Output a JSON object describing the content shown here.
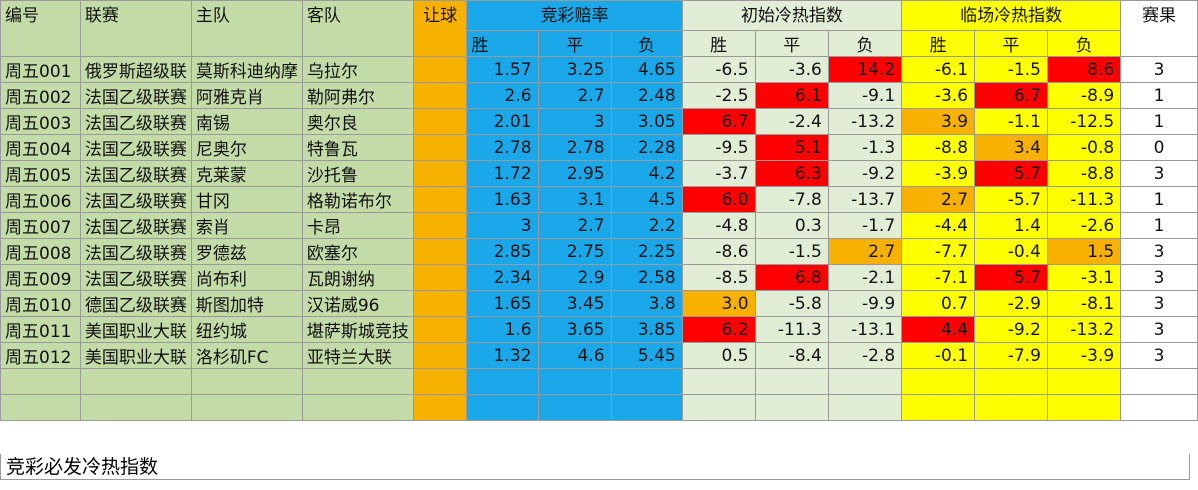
{
  "headers": {
    "id": "编号",
    "league": "联赛",
    "home": "主队",
    "away": "客队",
    "handicap": "让球",
    "odds_group": "竞彩赔率",
    "initial_group": "初始冷热指数",
    "live_group": "临场冷热指数",
    "result": "赛果",
    "win": "胜",
    "draw": "平",
    "lose": "负"
  },
  "rows": [
    {
      "id": "周五001",
      "league": "俄罗斯超级联",
      "home": "莫斯科迪纳摩",
      "away": "乌拉尔",
      "ow": "1.57",
      "od": "3.25",
      "ol": "4.65",
      "iw": "-6.5",
      "id2": "-3.6",
      "il": "14.2",
      "lw": "-6.1",
      "ld": "-1.5",
      "ll": "8.6",
      "res": "3"
    },
    {
      "id": "周五002",
      "league": "法国乙级联赛",
      "home": "阿雅克肖",
      "away": "勒阿弗尔",
      "ow": "2.6",
      "od": "2.7",
      "ol": "2.48",
      "iw": "-2.5",
      "id2": "6.1",
      "il": "-9.1",
      "lw": "-3.6",
      "ld": "6.7",
      "ll": "-8.9",
      "res": "1"
    },
    {
      "id": "周五003",
      "league": "法国乙级联赛",
      "home": "南锡",
      "away": "奥尔良",
      "ow": "2.01",
      "od": "3",
      "ol": "3.05",
      "iw": "6.7",
      "id2": "-2.4",
      "il": "-13.2",
      "lw": "3.9",
      "ld": "-1.1",
      "ll": "-12.5",
      "res": "1"
    },
    {
      "id": "周五004",
      "league": "法国乙级联赛",
      "home": "尼奥尔",
      "away": "特鲁瓦",
      "ow": "2.78",
      "od": "2.78",
      "ol": "2.28",
      "iw": "-9.5",
      "id2": "5.1",
      "il": "-1.3",
      "lw": "-8.8",
      "ld": "3.4",
      "ll": "-0.8",
      "res": "0"
    },
    {
      "id": "周五005",
      "league": "法国乙级联赛",
      "home": "克莱蒙",
      "away": "沙托鲁",
      "ow": "1.72",
      "od": "2.95",
      "ol": "4.2",
      "iw": "-3.7",
      "id2": "6.3",
      "il": "-9.2",
      "lw": "-3.9",
      "ld": "5.7",
      "ll": "-8.8",
      "res": "3"
    },
    {
      "id": "周五006",
      "league": "法国乙级联赛",
      "home": "甘冈",
      "away": "格勒诺布尔",
      "ow": "1.63",
      "od": "3.1",
      "ol": "4.5",
      "iw": "6.0",
      "id2": "-7.8",
      "il": "-13.7",
      "lw": "2.7",
      "ld": "-5.7",
      "ll": "-11.3",
      "res": "1"
    },
    {
      "id": "周五007",
      "league": "法国乙级联赛",
      "home": "索肖",
      "away": "卡昂",
      "ow": "3",
      "od": "2.7",
      "ol": "2.2",
      "iw": "-4.8",
      "id2": "0.3",
      "il": "-1.7",
      "lw": "-4.4",
      "ld": "1.4",
      "ll": "-2.6",
      "res": "1"
    },
    {
      "id": "周五008",
      "league": "法国乙级联赛",
      "home": "罗德兹",
      "away": "欧塞尔",
      "ow": "2.85",
      "od": "2.75",
      "ol": "2.25",
      "iw": "-8.6",
      "id2": "-1.5",
      "il": "2.7",
      "lw": "-7.7",
      "ld": "-0.4",
      "ll": "1.5",
      "res": "3"
    },
    {
      "id": "周五009",
      "league": "法国乙级联赛",
      "home": "尚布利",
      "away": "瓦朗谢纳",
      "ow": "2.34",
      "od": "2.9",
      "ol": "2.58",
      "iw": "-8.5",
      "id2": "6.8",
      "il": "-2.1",
      "lw": "-7.1",
      "ld": "5.7",
      "ll": "-3.1",
      "res": "3"
    },
    {
      "id": "周五010",
      "league": "德国乙级联赛",
      "home": "斯图加特",
      "away": "汉诺威96",
      "ow": "1.65",
      "od": "3.45",
      "ol": "3.8",
      "iw": "3.0",
      "id2": "-5.8",
      "il": "-9.9",
      "lw": "0.7",
      "ld": "-2.9",
      "ll": "-8.1",
      "res": "3"
    },
    {
      "id": "周五011",
      "league": "美国职业大联",
      "home": "纽约城",
      "away": "堪萨斯城竞技",
      "ow": "1.6",
      "od": "3.65",
      "ol": "3.85",
      "iw": "6.2",
      "id2": "-11.3",
      "il": "-13.1",
      "lw": "4.4",
      "ld": "-9.2",
      "ll": "-13.2",
      "res": "3"
    },
    {
      "id": "周五012",
      "league": "美国职业大联",
      "home": "洛杉矶FC",
      "away": "亚特兰大联",
      "ow": "1.32",
      "od": "4.6",
      "ol": "5.45",
      "iw": "0.5",
      "id2": "-8.4",
      "il": "-2.8",
      "lw": "-0.1",
      "ld": "-7.9",
      "ll": "-3.9",
      "res": "3"
    }
  ],
  "footer": "竞彩必发冷热指数",
  "colors": {
    "red": "#ff0000",
    "orange": "#f9b100",
    "green": "#c3dba7",
    "blue": "#1aa8ea",
    "yellow": "#ffff00"
  }
}
